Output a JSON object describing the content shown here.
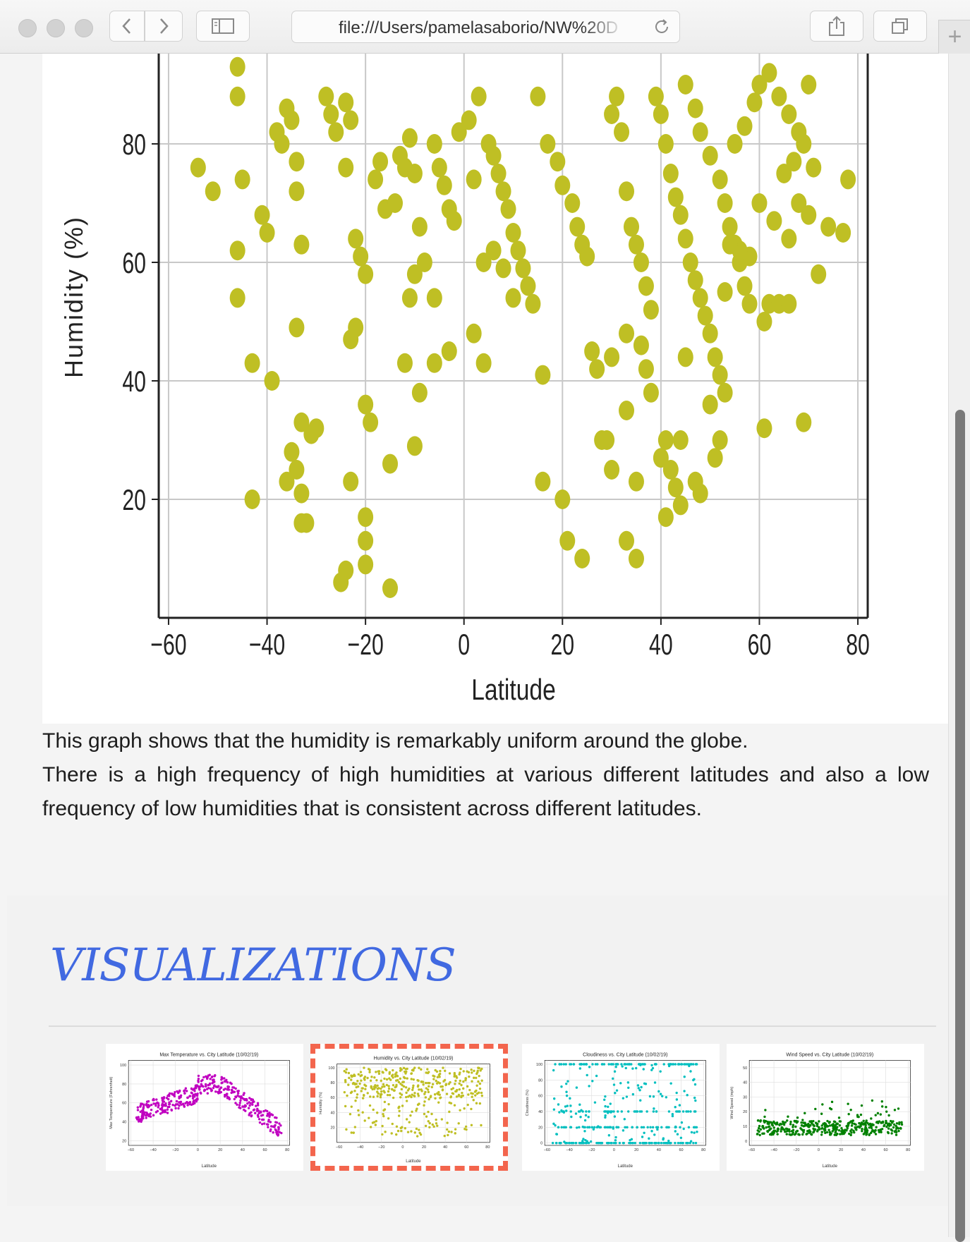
{
  "browser": {
    "url": "file:///Users/pamelasaborio/NW%20D",
    "back_icon": "chevron-left-icon",
    "forward_icon": "chevron-right-icon",
    "sidebar_icon": "sidebar-icon",
    "reload_icon": "reload-icon",
    "share_icon": "share-icon",
    "tabs_icon": "tabs-overview-icon",
    "new_tab_label": "+"
  },
  "chart_data": {
    "type": "scatter",
    "title": "",
    "xlabel": "Latitude",
    "ylabel": "Humidity (%)",
    "xlim": [
      -62,
      82
    ],
    "ylim": [
      0,
      100
    ],
    "xticks": [
      -60,
      -40,
      -20,
      0,
      20,
      40,
      60,
      80
    ],
    "yticks": [
      20,
      40,
      60,
      80
    ],
    "xtick_labels": [
      "−60",
      "−40",
      "−20",
      "0",
      "20",
      "40",
      "60",
      "80"
    ],
    "ytick_labels": [
      "20",
      "40",
      "60",
      "80"
    ],
    "grid": true,
    "color": "#bfbf24",
    "points": [
      [
        -54,
        76
      ],
      [
        -51,
        72
      ],
      [
        -46,
        93
      ],
      [
        -46,
        88
      ],
      [
        -45,
        74
      ],
      [
        -46,
        62
      ],
      [
        -46,
        54
      ],
      [
        -43,
        43
      ],
      [
        -43,
        20
      ],
      [
        -41,
        68
      ],
      [
        -40,
        65
      ],
      [
        -39,
        40
      ],
      [
        -38,
        82
      ],
      [
        -37,
        80
      ],
      [
        -36,
        86
      ],
      [
        -35,
        84
      ],
      [
        -34,
        72
      ],
      [
        -34,
        77
      ],
      [
        -33,
        63
      ],
      [
        -34,
        49
      ],
      [
        -33,
        33
      ],
      [
        -35,
        28
      ],
      [
        -34,
        25
      ],
      [
        -33,
        21
      ],
      [
        -36,
        23
      ],
      [
        -31,
        31
      ],
      [
        -30,
        32
      ],
      [
        -32,
        16
      ],
      [
        -33,
        16
      ],
      [
        -28,
        88
      ],
      [
        -27,
        85
      ],
      [
        -26,
        82
      ],
      [
        -24,
        87
      ],
      [
        -23,
        84
      ],
      [
        -24,
        76
      ],
      [
        -23,
        47
      ],
      [
        -22,
        49
      ],
      [
        -23,
        23
      ],
      [
        -22,
        64
      ],
      [
        -21,
        61
      ],
      [
        -20,
        58
      ],
      [
        -20,
        36
      ],
      [
        -19,
        33
      ],
      [
        -20,
        17
      ],
      [
        -20,
        13
      ],
      [
        -20,
        9
      ],
      [
        -24,
        8
      ],
      [
        -25,
        6
      ],
      [
        -15,
        5
      ],
      [
        -17,
        77
      ],
      [
        -18,
        74
      ],
      [
        -16,
        69
      ],
      [
        -14,
        70
      ],
      [
        -13,
        78
      ],
      [
        -12,
        76
      ],
      [
        -11,
        81
      ],
      [
        -10,
        75
      ],
      [
        -9,
        66
      ],
      [
        -8,
        60
      ],
      [
        -10,
        58
      ],
      [
        -11,
        54
      ],
      [
        -12,
        43
      ],
      [
        -9,
        38
      ],
      [
        -10,
        29
      ],
      [
        -15,
        26
      ],
      [
        -6,
        80
      ],
      [
        -5,
        76
      ],
      [
        -4,
        73
      ],
      [
        -3,
        69
      ],
      [
        -2,
        67
      ],
      [
        -6,
        54
      ],
      [
        -6,
        43
      ],
      [
        -3,
        45
      ],
      [
        -1,
        82
      ],
      [
        1,
        84
      ],
      [
        3,
        88
      ],
      [
        2,
        74
      ],
      [
        2,
        48
      ],
      [
        4,
        43
      ],
      [
        5,
        80
      ],
      [
        6,
        78
      ],
      [
        7,
        75
      ],
      [
        8,
        72
      ],
      [
        9,
        69
      ],
      [
        10,
        65
      ],
      [
        11,
        62
      ],
      [
        12,
        59
      ],
      [
        13,
        56
      ],
      [
        14,
        53
      ],
      [
        4,
        60
      ],
      [
        6,
        62
      ],
      [
        8,
        59
      ],
      [
        10,
        54
      ],
      [
        16,
        41
      ],
      [
        16,
        23
      ],
      [
        15,
        88
      ],
      [
        17,
        80
      ],
      [
        19,
        77
      ],
      [
        20,
        73
      ],
      [
        22,
        70
      ],
      [
        23,
        66
      ],
      [
        24,
        63
      ],
      [
        25,
        61
      ],
      [
        20,
        20
      ],
      [
        21,
        13
      ],
      [
        24,
        10
      ],
      [
        26,
        45
      ],
      [
        27,
        42
      ],
      [
        28,
        30
      ],
      [
        29,
        30
      ],
      [
        30,
        25
      ],
      [
        30,
        85
      ],
      [
        31,
        88
      ],
      [
        32,
        82
      ],
      [
        33,
        72
      ],
      [
        34,
        66
      ],
      [
        35,
        63
      ],
      [
        36,
        60
      ],
      [
        37,
        56
      ],
      [
        38,
        52
      ],
      [
        30,
        44
      ],
      [
        33,
        35
      ],
      [
        35,
        23
      ],
      [
        33,
        48
      ],
      [
        36,
        46
      ],
      [
        37,
        42
      ],
      [
        38,
        38
      ],
      [
        40,
        27
      ],
      [
        41,
        30
      ],
      [
        42,
        25
      ],
      [
        43,
        22
      ],
      [
        44,
        19
      ],
      [
        33,
        13
      ],
      [
        35,
        10
      ],
      [
        39,
        88
      ],
      [
        40,
        85
      ],
      [
        41,
        80
      ],
      [
        42,
        75
      ],
      [
        43,
        71
      ],
      [
        44,
        68
      ],
      [
        45,
        64
      ],
      [
        46,
        60
      ],
      [
        47,
        57
      ],
      [
        48,
        54
      ],
      [
        49,
        51
      ],
      [
        50,
        48
      ],
      [
        51,
        44
      ],
      [
        52,
        41
      ],
      [
        53,
        38
      ],
      [
        50,
        36
      ],
      [
        52,
        30
      ],
      [
        51,
        27
      ],
      [
        47,
        23
      ],
      [
        48,
        21
      ],
      [
        41,
        17
      ],
      [
        44,
        30
      ],
      [
        45,
        44
      ],
      [
        45,
        90
      ],
      [
        47,
        86
      ],
      [
        48,
        82
      ],
      [
        50,
        78
      ],
      [
        52,
        74
      ],
      [
        53,
        70
      ],
      [
        54,
        66
      ],
      [
        55,
        63
      ],
      [
        56,
        60
      ],
      [
        57,
        56
      ],
      [
        58,
        53
      ],
      [
        55,
        80
      ],
      [
        57,
        83
      ],
      [
        59,
        87
      ],
      [
        60,
        90
      ],
      [
        61,
        50
      ],
      [
        62,
        53
      ],
      [
        64,
        53
      ],
      [
        66,
        53
      ],
      [
        61,
        32
      ],
      [
        69,
        33
      ],
      [
        72,
        58
      ],
      [
        68,
        70
      ],
      [
        70,
        68
      ],
      [
        65,
        75
      ],
      [
        67,
        77
      ],
      [
        69,
        80
      ],
      [
        71,
        76
      ],
      [
        74,
        66
      ],
      [
        77,
        65
      ],
      [
        78,
        74
      ],
      [
        62,
        92
      ],
      [
        64,
        88
      ],
      [
        66,
        85
      ],
      [
        68,
        82
      ],
      [
        70,
        90
      ],
      [
        60,
        70
      ],
      [
        63,
        67
      ],
      [
        66,
        64
      ],
      [
        58,
        61
      ],
      [
        56,
        62
      ],
      [
        54,
        63
      ],
      [
        53,
        55
      ]
    ]
  },
  "description": {
    "line1": "This graph shows that the humidity is remarkably uniform around the globe.",
    "line2": "There is a high frequency of high humidities at various different latitudes and also a low frequency of low humidities that is consistent across different latitudes."
  },
  "visualizations": {
    "heading": "VISUALIZATIONS",
    "thumbnails": [
      {
        "title": "Max Temperature vs. City Latitude (10/02/19)",
        "ylabel": "Max Temperature (Fahrenheit)",
        "xlabel": "Latitude",
        "color": "#c000c0",
        "selected": false,
        "yticks": [
          "20",
          "40",
          "60",
          "80",
          "100"
        ],
        "xticks": [
          "−60",
          "−40",
          "−20",
          "0",
          "20",
          "40",
          "60",
          "80"
        ]
      },
      {
        "title": "Humidity vs. City Latitude (10/02/19)",
        "ylabel": "Humidity (%)",
        "xlabel": "Latitude",
        "color": "#bfbf24",
        "selected": true,
        "yticks": [
          "20",
          "40",
          "60",
          "80",
          "100"
        ],
        "xticks": [
          "−60",
          "−40",
          "−20",
          "0",
          "20",
          "40",
          "60",
          "80"
        ]
      },
      {
        "title": "Cloudiness vs. City Latitude (10/02/19)",
        "ylabel": "Cloudiness (%)",
        "xlabel": "Latitude",
        "color": "#00bfbf",
        "selected": false,
        "yticks": [
          "0",
          "20",
          "40",
          "60",
          "80",
          "100"
        ],
        "xticks": [
          "−60",
          "−40",
          "−20",
          "0",
          "20",
          "40",
          "60",
          "80"
        ]
      },
      {
        "title": "Wind Speed vs. City Latitude (10/02/19)",
        "ylabel": "Wind Speed (mph)",
        "xlabel": "Latitude",
        "color": "#008000",
        "selected": false,
        "yticks": [
          "0",
          "10",
          "20",
          "30",
          "40",
          "50"
        ],
        "xticks": [
          "−60",
          "−40",
          "−20",
          "0",
          "20",
          "40",
          "60",
          "80"
        ]
      }
    ]
  }
}
